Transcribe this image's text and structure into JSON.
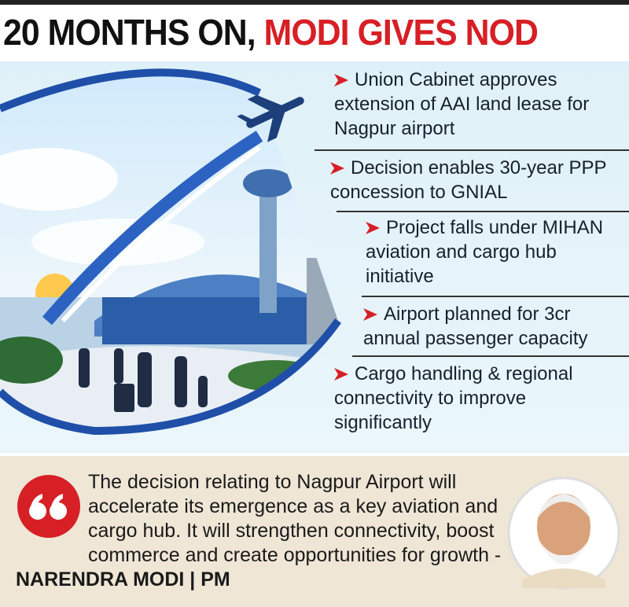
{
  "header": {
    "title_lead": "20 MONTHS ON,",
    "title_highlight": "MODI GIVES NOD"
  },
  "bullets": [
    "Union Cabinet approves extension of AAI land lease for Nagpur airport",
    "Decision enables 30-year PPP concession to GNIAL",
    "Project falls under MIHAN aviation and cargo hub initiative",
    "Airport planned for 3cr annual passenger capacity",
    "Cargo handling & regional connectivity to improve significantly"
  ],
  "quote": {
    "text": "The decision relating to Nagpur Airport will accelerate its emergence as a key aviation and cargo hub. It will strengthen connectivity, boost commerce and create opportunities for growth -",
    "attribution": "NARENDRA MODI | PM"
  }
}
